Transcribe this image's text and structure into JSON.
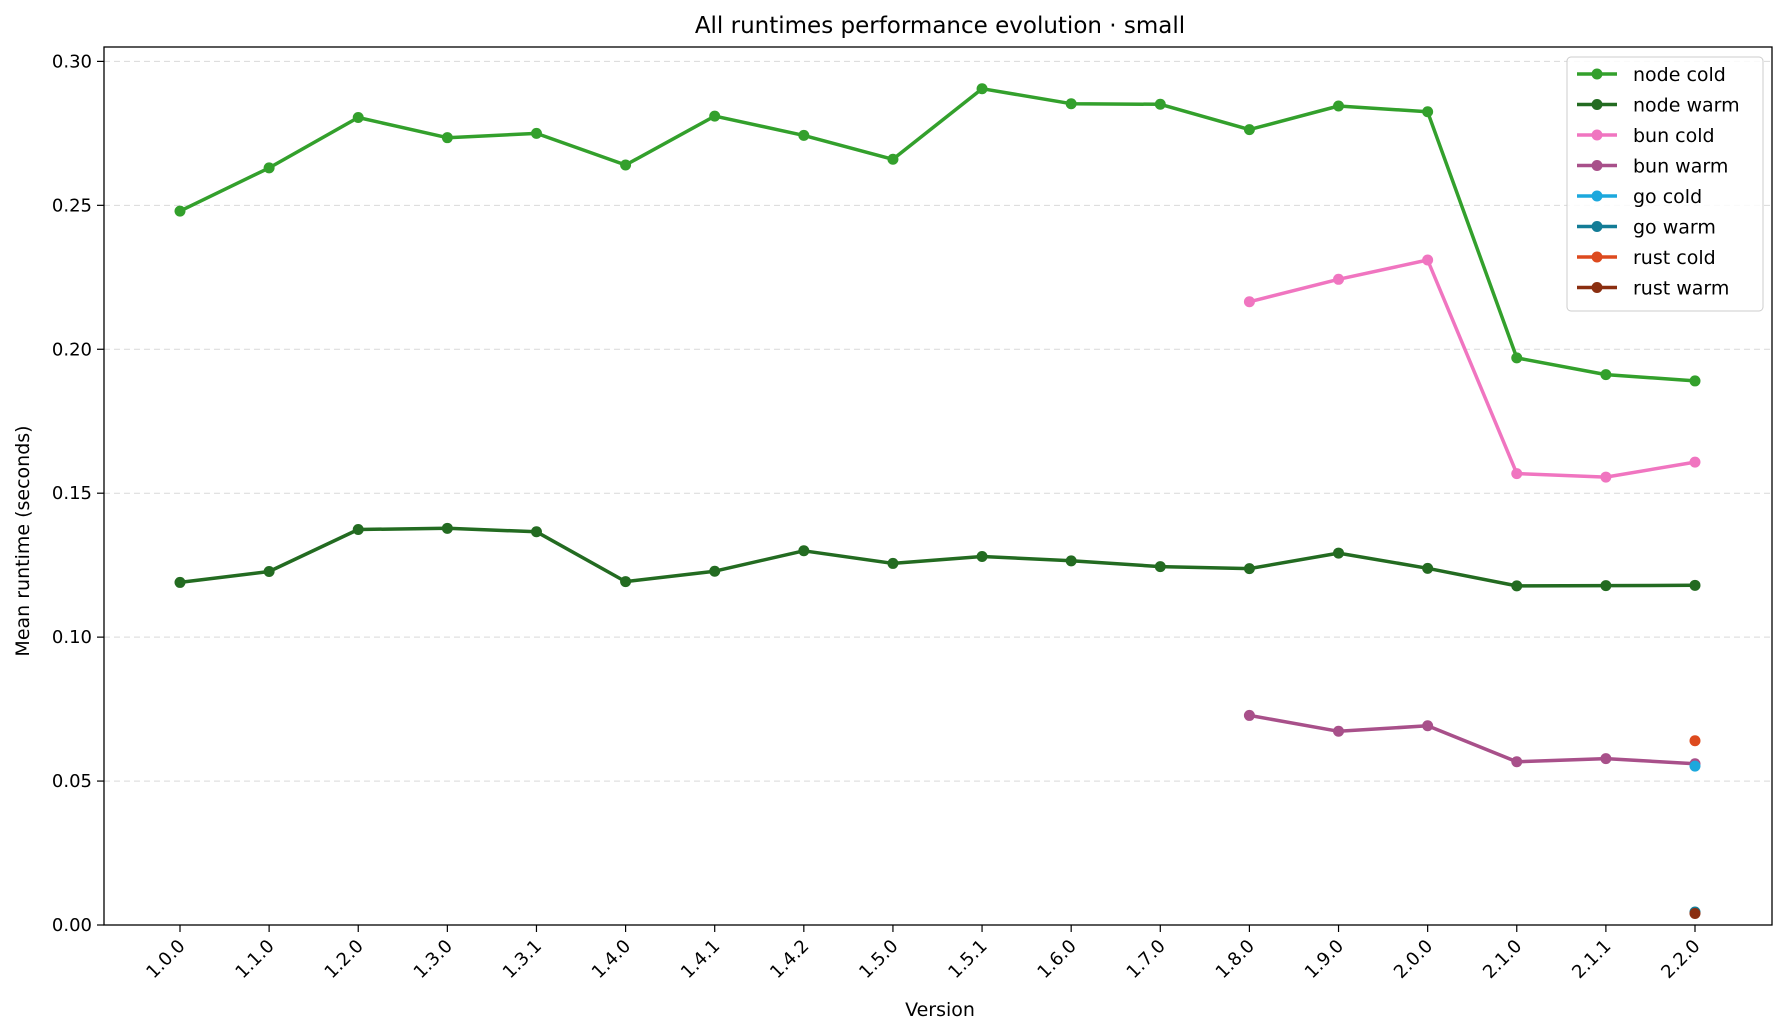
{
  "chart_data": {
    "type": "line",
    "title": "All runtimes performance evolution · small",
    "xlabel": "Version",
    "ylabel": "Mean runtime (seconds)",
    "categories": [
      "1.0.0",
      "1.1.0",
      "1.2.0",
      "1.3.0",
      "1.3.1",
      "1.4.0",
      "1.4.1",
      "1.4.2",
      "1.5.0",
      "1.5.1",
      "1.6.0",
      "1.7.0",
      "1.8.0",
      "1.9.0",
      "2.0.0",
      "2.1.0",
      "2.1.1",
      "2.2.0"
    ],
    "ylim": [
      0,
      0.305
    ],
    "yticks": [
      "0.00",
      "0.05",
      "0.10",
      "0.15",
      "0.20",
      "0.25",
      "0.30"
    ],
    "ytick_values": [
      0,
      0.05,
      0.1,
      0.15,
      0.2,
      0.25,
      0.3
    ],
    "grid": "horizontal-dashed",
    "legend_position": "top-right",
    "series": [
      {
        "name": "node cold",
        "color": "#33a02c",
        "values": [
          0.248,
          0.263,
          0.2805,
          0.2735,
          0.275,
          0.264,
          0.281,
          0.2743,
          0.266,
          0.2905,
          0.2853,
          0.2851,
          0.2763,
          0.2845,
          0.2825,
          0.197,
          0.1912,
          0.189
        ]
      },
      {
        "name": "node warm",
        "color": "#236b21",
        "values": [
          0.119,
          0.1228,
          0.1374,
          0.1378,
          0.1366,
          0.1193,
          0.1229,
          0.13,
          0.1256,
          0.128,
          0.1265,
          0.1245,
          0.1238,
          0.1292,
          0.1239,
          0.1178,
          0.1179,
          0.118
        ]
      },
      {
        "name": "bun cold",
        "color": "#f075c0",
        "values": [
          null,
          null,
          null,
          null,
          null,
          null,
          null,
          null,
          null,
          null,
          null,
          null,
          0.2165,
          0.2243,
          0.231,
          0.1568,
          0.1556,
          0.1608
        ]
      },
      {
        "name": "bun warm",
        "color": "#a8508a",
        "values": [
          null,
          null,
          null,
          null,
          null,
          null,
          null,
          null,
          null,
          null,
          null,
          null,
          0.0728,
          0.0673,
          0.0692,
          0.0567,
          0.0578,
          0.056
        ]
      },
      {
        "name": "go cold",
        "color": "#1ca8dd",
        "values": [
          null,
          null,
          null,
          null,
          null,
          null,
          null,
          null,
          null,
          null,
          null,
          null,
          null,
          null,
          null,
          null,
          null,
          0.0552
        ]
      },
      {
        "name": "go warm",
        "color": "#137c96",
        "values": [
          null,
          null,
          null,
          null,
          null,
          null,
          null,
          null,
          null,
          null,
          null,
          null,
          null,
          null,
          null,
          null,
          null,
          0.0045
        ]
      },
      {
        "name": "rust cold",
        "color": "#dd4a1e",
        "values": [
          null,
          null,
          null,
          null,
          null,
          null,
          null,
          null,
          null,
          null,
          null,
          null,
          null,
          null,
          null,
          null,
          null,
          0.064
        ]
      },
      {
        "name": "rust warm",
        "color": "#8a2e10",
        "values": [
          null,
          null,
          null,
          null,
          null,
          null,
          null,
          null,
          null,
          null,
          null,
          null,
          null,
          null,
          null,
          null,
          null,
          0.004
        ]
      }
    ]
  }
}
